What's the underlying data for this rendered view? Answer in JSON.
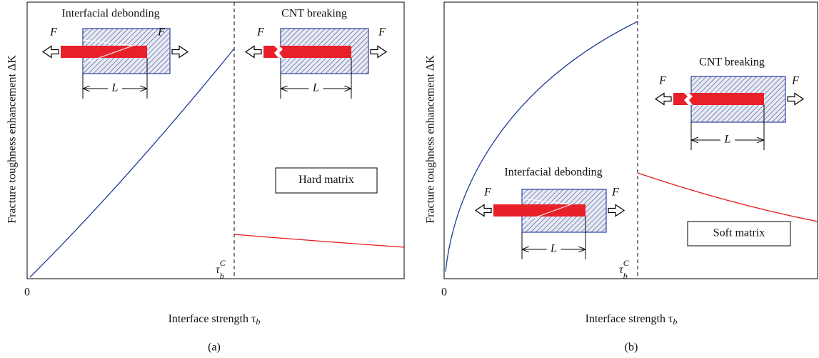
{
  "panels": [
    {
      "label": "(a)",
      "y_axis_label": "Fracture toughness enhancement ΔK",
      "x_axis_label": {
        "main": "Interface strength τ",
        "sub": "b"
      },
      "origin": "0",
      "threshold": {
        "symbol": "τ",
        "sub": "b",
        "sup": "C"
      },
      "insets": [
        {
          "title": "Interfacial debonding",
          "force_left": "F",
          "force_right": "F",
          "length": "L"
        },
        {
          "title": "CNT breaking",
          "force_left": "F",
          "force_right": "F",
          "length": "L"
        }
      ],
      "matrix": "Hard matrix"
    },
    {
      "label": "(b)",
      "y_axis_label": "Fracture toughness enhancement ΔK",
      "x_axis_label": {
        "main": "Interface strength τ",
        "sub": "b"
      },
      "origin": "0",
      "threshold": {
        "symbol": "τ",
        "sub": "b",
        "sup": "C"
      },
      "insets": [
        {
          "title": "CNT breaking",
          "force_left": "F",
          "force_right": "F",
          "length": "L"
        },
        {
          "title": "Interfacial debonding",
          "force_left": "F",
          "force_right": "F",
          "length": "L"
        }
      ],
      "matrix": "Soft matrix"
    }
  ]
}
